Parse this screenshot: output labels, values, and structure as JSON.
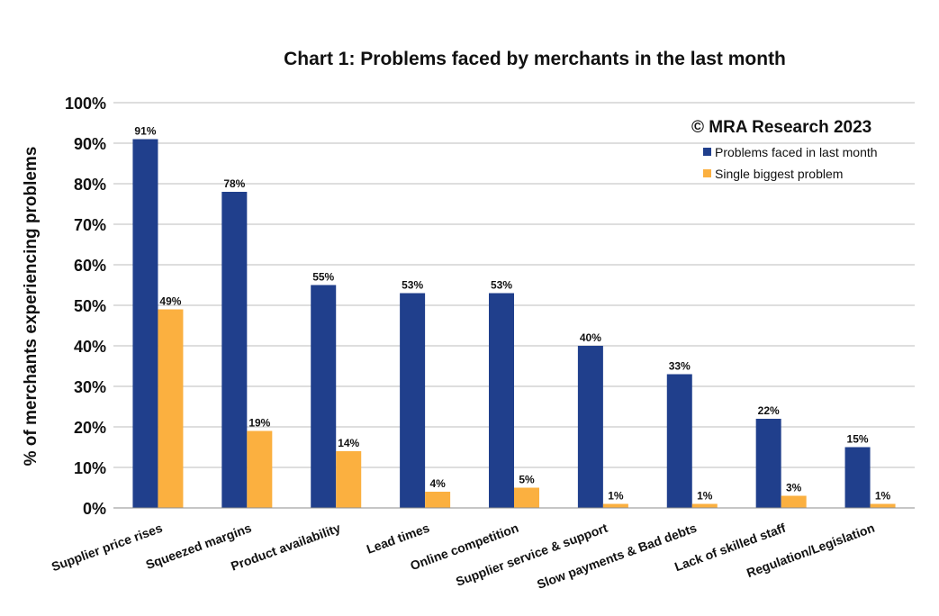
{
  "chart_data": {
    "type": "bar",
    "title": "Chart 1: Problems faced by merchants in the last month",
    "ylabel": "% of merchants experiencing problems",
    "xlabel": "",
    "ylim": [
      0,
      100
    ],
    "yticks": [
      "0%",
      "10%",
      "20%",
      "30%",
      "40%",
      "50%",
      "60%",
      "70%",
      "80%",
      "90%",
      "100%"
    ],
    "grid": true,
    "legend_position": "top-right",
    "annotation": "© MRA Research 2023",
    "categories": [
      "Supplier price rises",
      "Squeezed margins",
      "Product availability",
      "Lead times",
      "Online competition",
      "Supplier service & support",
      "Slow payments & Bad debts",
      "Lack of skilled staff",
      "Regulation/Legislation"
    ],
    "series": [
      {
        "name": "Problems faced in last month",
        "color": "#203f8c",
        "values": [
          91,
          78,
          55,
          53,
          53,
          40,
          33,
          22,
          15
        ],
        "labels": [
          "91%",
          "78%",
          "55%",
          "53%",
          "53%",
          "40%",
          "33%",
          "22%",
          "15%"
        ]
      },
      {
        "name": "Single biggest problem",
        "color": "#fbb040",
        "values": [
          49,
          19,
          14,
          4,
          5,
          1,
          1,
          3,
          1
        ],
        "labels": [
          "49%",
          "19%",
          "14%",
          "4%",
          "5%",
          "1%",
          "1%",
          "3%",
          "1%"
        ]
      }
    ]
  }
}
